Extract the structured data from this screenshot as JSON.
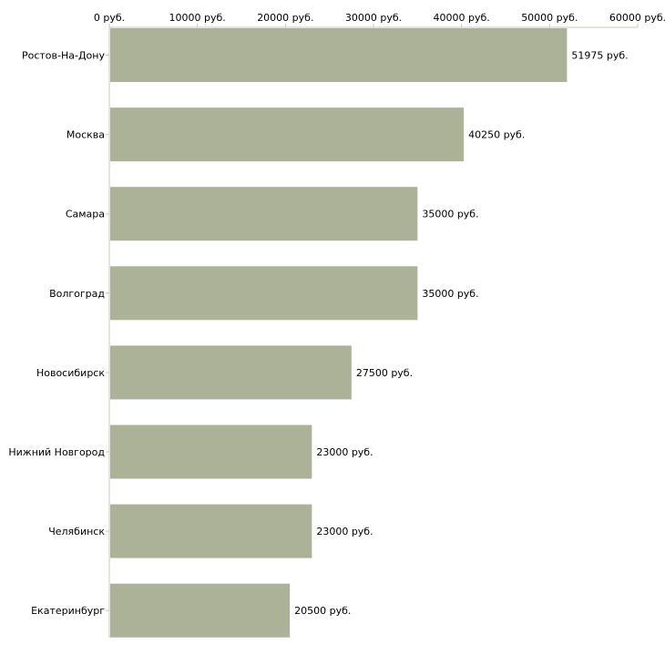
{
  "chart_data": {
    "type": "bar",
    "orientation": "horizontal",
    "title": "",
    "xlabel": "",
    "ylabel": "",
    "unit": "руб.",
    "xlim": [
      0,
      60000
    ],
    "xticks": [
      0,
      10000,
      20000,
      30000,
      40000,
      50000,
      60000
    ],
    "xtick_labels": [
      "0 руб.",
      "10000 руб.",
      "20000 руб.",
      "30000 руб.",
      "40000 руб.",
      "50000 руб.",
      "60000 руб."
    ],
    "categories": [
      "Ростов-На-Дону",
      "Москва",
      "Самара",
      "Волгоград",
      "Новосибирск",
      "Нижний Новгород",
      "Челябинск",
      "Екатеринбург"
    ],
    "values": [
      51975,
      40250,
      35000,
      35000,
      27500,
      23000,
      23000,
      20500
    ],
    "value_labels": [
      "51975 руб.",
      "40250 руб.",
      "35000 руб.",
      "35000 руб.",
      "27500 руб.",
      "23000 руб.",
      "23000 руб.",
      "20500 руб."
    ],
    "bar_color": "#abb297",
    "axis_color": "#c8c8b8",
    "grid": false
  }
}
